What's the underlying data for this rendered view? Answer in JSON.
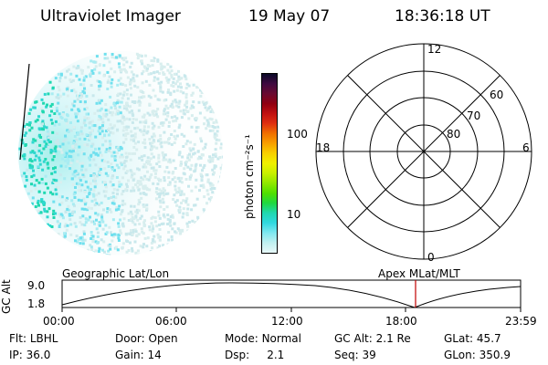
{
  "header": {
    "instrument": "Ultraviolet Imager",
    "date": "19 May 07",
    "time": "18:36:18 UT"
  },
  "colorbar": {
    "unit_label": "photon cm⁻²s⁻¹",
    "ticks": [
      "100",
      "10"
    ],
    "colors": [
      "#0a0a28",
      "#400a40",
      "#6a0a30",
      "#900010",
      "#c01010",
      "#e03010",
      "#f07000",
      "#f8a000",
      "#f8d000",
      "#f0f000",
      "#c8f000",
      "#90e800",
      "#50e000",
      "#20d840",
      "#20d8b0",
      "#30d8e0",
      "#80e8f0",
      "#c0f0f0",
      "#e8f8f8"
    ]
  },
  "polar_plot": {
    "mlt_labels": {
      "top": "12",
      "left": "18",
      "right": "6",
      "bottom": "0"
    },
    "lat_labels": [
      "60",
      "70",
      "80"
    ]
  },
  "timeline": {
    "axis_label": "GC Alt",
    "y_ticks": [
      "9.0",
      "1.8"
    ],
    "left_label": "Geographic Lat/Lon",
    "right_label": "Apex MLat/MLT",
    "x_ticks": [
      "00:00",
      "06:00",
      "12:00",
      "18:00",
      "23:59"
    ]
  },
  "status": {
    "row1": [
      {
        "label": "Flt:",
        "value": "LBHL"
      },
      {
        "label": "Door:",
        "value": "Open"
      },
      {
        "label": "Mode:",
        "value": "Normal"
      },
      {
        "label": "GC Alt:",
        "value": "2.1 Re"
      },
      {
        "label": "GLat:",
        "value": "45.7"
      }
    ],
    "row2": [
      {
        "label": "IP:",
        "value": "36.0"
      },
      {
        "label": "Gain:",
        "value": "14"
      },
      {
        "label": "Dsp:",
        "value": "2.1"
      },
      {
        "label": "Seq:",
        "value": "39"
      },
      {
        "label": "GLon:",
        "value": "350.9"
      }
    ]
  }
}
